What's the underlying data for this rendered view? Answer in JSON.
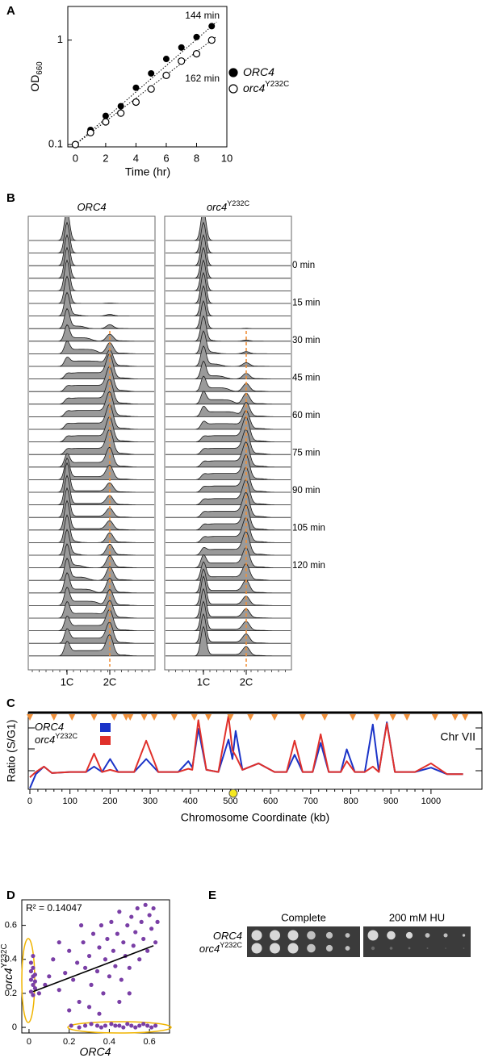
{
  "chart_data": [
    {
      "panel": "A",
      "type": "scatter",
      "log_y": true,
      "fit_lines": true,
      "legend": true,
      "x_label": "Time (hr)",
      "y_label": {
        "text": "OD",
        "sub": "660"
      },
      "x": [
        0,
        1,
        2,
        3,
        4,
        5,
        6,
        7,
        8,
        9
      ],
      "series": [
        {
          "name": {
            "text": "ORC4"
          },
          "marker": "filled",
          "color": "#000000",
          "values": [
            0.1,
            0.138,
            0.188,
            0.233,
            0.35,
            0.48,
            0.66,
            0.85,
            1.07,
            1.36
          ]
        },
        {
          "name": {
            "text": "orc4",
            "sup": "Y232C"
          },
          "marker": "open",
          "color": "#000000",
          "values": [
            0.1,
            0.13,
            0.165,
            0.2,
            0.255,
            0.34,
            0.46,
            0.63,
            0.74,
            1.0
          ]
        }
      ],
      "annotations": [
        "144 min",
        "162 min"
      ],
      "xlim": [
        -0.5,
        10
      ],
      "xticks": [
        0,
        2,
        4,
        6,
        8,
        10
      ],
      "ylim": [
        0.095,
        2.1
      ],
      "yticks": [
        0.1,
        1
      ]
    },
    {
      "panel": "B",
      "type": "flow-histograms",
      "strains": [
        {
          "text": "ORC4"
        },
        {
          "text": "orc4",
          "sup": "Y232C"
        }
      ],
      "time_labels": [
        "0 min",
        "15 min",
        "30 min",
        "45 min",
        "60 min",
        "75 min",
        "90 min",
        "105 min",
        "120 min"
      ],
      "x_tick_labels": [
        "1C",
        "2C"
      ]
    },
    {
      "panel": "C",
      "type": "line",
      "annotation": "Chr VII",
      "x_label": "Chromosome Coordinate (kb)",
      "y_label": "Ratio (S/G1)",
      "x": [
        0,
        15,
        35,
        55,
        100,
        140,
        160,
        180,
        200,
        220,
        260,
        290,
        320,
        370,
        395,
        405,
        420,
        440,
        470,
        495,
        505,
        513,
        530,
        570,
        610,
        640,
        660,
        680,
        705,
        725,
        745,
        775,
        790,
        810,
        835,
        855,
        870,
        890,
        910,
        960,
        1000,
        1040,
        1080
      ],
      "series": [
        {
          "name": {
            "text": "ORC4"
          },
          "color": "#1a33c8",
          "values": [
            0.85,
            0.98,
            1.05,
            0.99,
            1.0,
            1.0,
            1.05,
            1.0,
            1.12,
            1.0,
            1.0,
            1.12,
            1.0,
            1.0,
            1.1,
            1.04,
            1.4,
            1.02,
            1.0,
            1.3,
            1.12,
            1.38,
            1.02,
            1.08,
            1.0,
            1.0,
            1.16,
            1.0,
            1.0,
            1.27,
            1.0,
            1.0,
            1.21,
            1.0,
            1.0,
            1.44,
            1.0,
            1.46,
            1.0,
            1.0,
            1.04,
            0.98,
            0.98
          ]
        },
        {
          "name": {
            "text": "orc4",
            "sup": "Y232C"
          },
          "color": "#e0302a",
          "values": [
            0.95,
            1.0,
            1.05,
            0.99,
            1.0,
            1.0,
            1.17,
            1.0,
            1.02,
            1.0,
            1.0,
            1.29,
            1.0,
            1.0,
            1.03,
            1.02,
            1.48,
            1.02,
            1.0,
            1.52,
            1.2,
            1.15,
            1.02,
            1.08,
            1.0,
            1.0,
            1.29,
            1.0,
            1.0,
            1.35,
            1.0,
            1.0,
            1.1,
            1.0,
            1.0,
            1.05,
            1.0,
            1.45,
            1.0,
            1.0,
            1.08,
            0.98,
            0.98
          ]
        }
      ],
      "origins_kb": [
        0,
        60,
        105,
        160,
        210,
        240,
        250,
        285,
        310,
        360,
        410,
        445,
        500,
        550,
        610,
        680,
        735,
        805,
        865,
        905,
        940,
        1010,
        1060,
        1085
      ],
      "origin_color": "#f0903a",
      "centromere_kb": 507,
      "centromere_color": "#f5e820",
      "xlim": [
        -4,
        1127
      ],
      "xticks": [
        0,
        100,
        200,
        300,
        400,
        500,
        600,
        700,
        800,
        900,
        1000
      ],
      "ylim": [
        0.84,
        1.55
      ]
    },
    {
      "panel": "D",
      "type": "scatter",
      "annotation": "R² = 0.14047",
      "x_label": {
        "text": "ORC4"
      },
      "y_label": {
        "text": "orc4",
        "sup": "Y232C"
      },
      "series": [
        {
          "color": "#7a3fa6",
          "x": [
            0.01,
            0.02,
            0.01,
            0.03,
            0.02,
            0.01,
            0.02,
            0.03,
            0.02,
            0.01,
            0.03,
            0.02,
            0.21,
            0.25,
            0.28,
            0.31,
            0.34,
            0.36,
            0.38,
            0.41,
            0.43,
            0.45,
            0.47,
            0.49,
            0.51,
            0.53,
            0.55,
            0.57,
            0.59,
            0.61,
            0.63,
            0.05,
            0.08,
            0.1,
            0.12,
            0.15,
            0.18,
            0.2,
            0.22,
            0.24,
            0.25,
            0.27,
            0.28,
            0.3,
            0.31,
            0.32,
            0.34,
            0.35,
            0.36,
            0.37,
            0.38,
            0.39,
            0.4,
            0.41,
            0.42,
            0.43,
            0.44,
            0.45,
            0.46,
            0.47,
            0.48,
            0.49,
            0.5,
            0.51,
            0.52,
            0.53,
            0.54,
            0.55,
            0.56,
            0.57,
            0.58,
            0.59,
            0.6,
            0.61,
            0.62,
            0.63,
            0.64,
            0.2,
            0.3,
            0.45,
            0.35,
            0.5,
            0.26,
            0.15
          ],
          "values": [
            0.21,
            0.25,
            0.28,
            0.31,
            0.35,
            0.38,
            0.42,
            0.23,
            0.19,
            0.33,
            0.27,
            0.3,
            0.01,
            0.0,
            0.01,
            0.02,
            0.01,
            0.0,
            0.01,
            0.02,
            0.01,
            0.01,
            0.0,
            0.02,
            0.01,
            0.0,
            0.01,
            0.02,
            0.01,
            0.0,
            0.01,
            0.2,
            0.25,
            0.3,
            0.4,
            0.22,
            0.32,
            0.45,
            0.28,
            0.38,
            0.15,
            0.5,
            0.35,
            0.42,
            0.25,
            0.55,
            0.33,
            0.47,
            0.6,
            0.2,
            0.4,
            0.52,
            0.3,
            0.62,
            0.45,
            0.36,
            0.55,
            0.68,
            0.28,
            0.5,
            0.42,
            0.6,
            0.35,
            0.65,
            0.48,
            0.56,
            0.7,
            0.4,
            0.62,
            0.52,
            0.72,
            0.45,
            0.66,
            0.58,
            0.7,
            0.5,
            0.62,
            0.1,
            0.12,
            0.15,
            0.08,
            0.2,
            0.6,
            0.5
          ]
        }
      ],
      "fit": {
        "x": [
          0.02,
          0.62
        ],
        "y": [
          0.21,
          0.48
        ]
      },
      "xlim": [
        -0.036,
        0.7
      ],
      "xticks": [
        0,
        0.2,
        0.4,
        0.6
      ],
      "ylim": [
        -0.033,
        0.75
      ],
      "yticks": [
        0,
        0.2,
        0.4,
        0.6
      ]
    },
    {
      "panel": "E",
      "type": "spot-assay",
      "conditions": [
        "Complete",
        "200 mM HU"
      ],
      "strains": [
        {
          "text": "ORC4"
        },
        {
          "text": "orc4",
          "sup": "Y232C"
        }
      ]
    }
  ]
}
